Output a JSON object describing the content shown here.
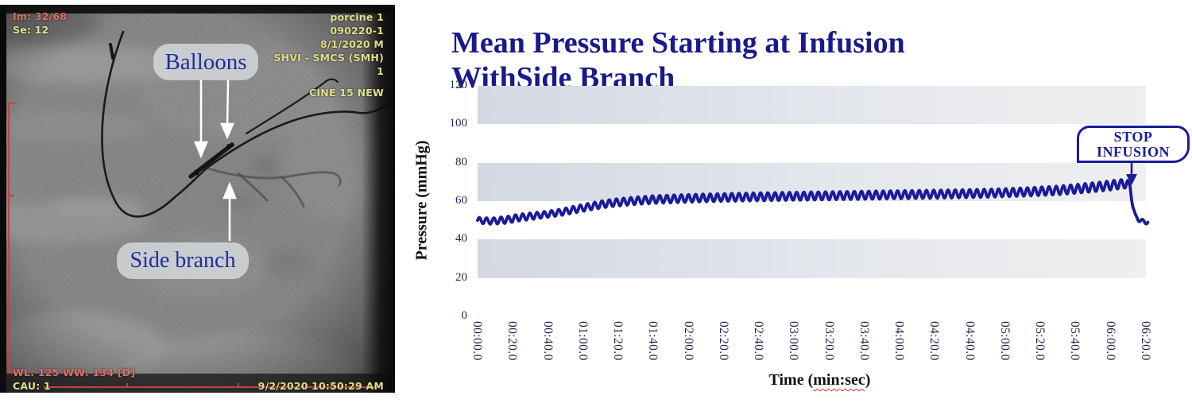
{
  "xray": {
    "im_counter": "Im: 32/68",
    "series_label": "Se: 12",
    "info_top_right": [
      "porcine 1",
      "090220-1",
      "8/1/2020 M",
      "SHVI - SMCS (SMH)",
      "1"
    ],
    "cine_label": "CINE 15 NEW",
    "window_settings": "WL: 125 WW: 134 [D]",
    "angle_label": "CAU: 1",
    "timestamp": "9/2/2020 10:50:29 AM",
    "annotations": {
      "balloons": "Balloons",
      "side_branch": "Side branch"
    }
  },
  "colors": {
    "overlay_yellow": "#dfe089",
    "overlay_red": "#dd7066",
    "collimator_red": "#c0453a",
    "annotation_navy": "#202e9c",
    "title_navy": "#1a1a8c",
    "trace_navy": "#1b1b9a",
    "band_gray": "#d3d8e3"
  },
  "chart_data": {
    "type": "line",
    "title": "Mean Pressure Starting at Infusion WithSide Branch",
    "ylabel": "Pressure (mmHg)",
    "xlabel_prefix": "Time (",
    "xlabel_unit": "min:sec",
    "xlabel_suffix": ")",
    "ylim": [
      0,
      120
    ],
    "yticks": [
      120,
      100,
      80,
      60,
      40,
      20,
      0
    ],
    "xtick_labels": [
      "00:00.0",
      "00:20.0",
      "00:40.0",
      "01:00.0",
      "01:20.0",
      "01:40.0",
      "02:00.0",
      "02:20.0",
      "02:40.0",
      "03:00.0",
      "03:20.0",
      "03:40.0",
      "04:00.0",
      "04:20.0",
      "04:40.0",
      "05:00.0",
      "05:20.0",
      "05:40.0",
      "06:00.0",
      "06:20.0"
    ],
    "xtick_interval_s": 20,
    "x_span_s": 380,
    "grid": "off",
    "legend": "none",
    "shaded_bands": [
      [
        100,
        120
      ],
      [
        60,
        80
      ],
      [
        20,
        40
      ]
    ],
    "series": [
      {
        "name": "Mean pressure",
        "color": "#1b1b9a",
        "baseline_keypoints": [
          [
            0,
            50
          ],
          [
            8,
            49.6
          ],
          [
            16,
            50.2
          ],
          [
            24,
            51.5
          ],
          [
            32,
            52.3
          ],
          [
            40,
            53.2
          ],
          [
            48,
            54.3
          ],
          [
            56,
            55.8
          ],
          [
            64,
            57.2
          ],
          [
            72,
            58.5
          ],
          [
            80,
            59.4
          ],
          [
            90,
            60.2
          ],
          [
            100,
            60.8
          ],
          [
            112,
            61.2
          ],
          [
            126,
            61.6
          ],
          [
            145,
            62
          ],
          [
            170,
            62.4
          ],
          [
            200,
            62.8
          ],
          [
            230,
            63.2
          ],
          [
            260,
            63.6
          ],
          [
            290,
            64.1
          ],
          [
            310,
            64.7
          ],
          [
            330,
            65.6
          ],
          [
            342,
            66.5
          ],
          [
            352,
            67.4
          ],
          [
            360,
            68.2
          ],
          [
            365,
            68.8
          ],
          [
            369.5,
            69.2
          ],
          [
            371,
            67.5
          ],
          [
            372.5,
            58
          ],
          [
            374,
            52
          ],
          [
            375.5,
            50.5
          ],
          [
            377.5,
            49.9
          ],
          [
            379.5,
            48.9
          ],
          [
            381.5,
            49.3
          ]
        ],
        "ripple": {
          "period_s": 4.1,
          "amplitude_keypoints": [
            [
              0,
              1.5
            ],
            [
              20,
              1.8
            ],
            [
              40,
              1.6
            ],
            [
              60,
              1.8
            ],
            [
              100,
              2.0
            ],
            [
              200,
              2.1
            ],
            [
              300,
              2.1
            ],
            [
              345,
              2.3
            ],
            [
              360,
              2.4
            ],
            [
              369,
              2.3
            ],
            [
              371,
              1.5
            ],
            [
              373.5,
              1.0
            ],
            [
              381.5,
              0.9
            ]
          ]
        }
      }
    ],
    "annotation": {
      "text": "STOP INFUSION",
      "lines": [
        "STOP",
        "INFUSION"
      ],
      "points_at": {
        "t_seconds": 372,
        "pressure_mmHg": 70
      }
    }
  }
}
